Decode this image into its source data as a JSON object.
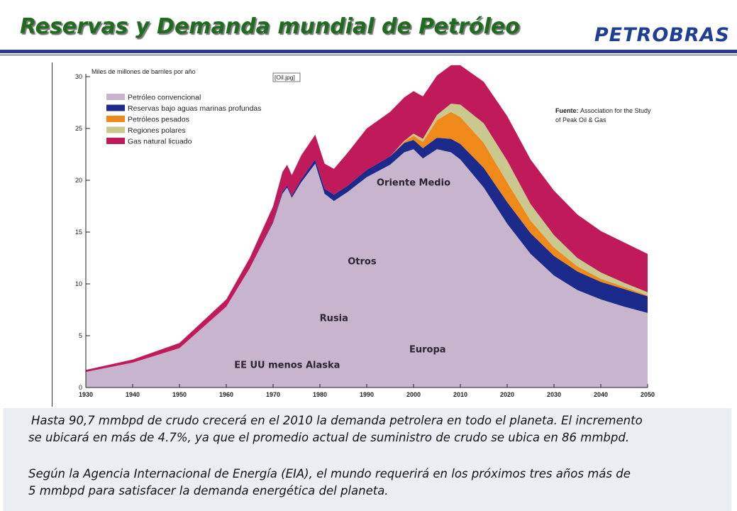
{
  "slide": {
    "title": "Reservas y Demanda mundial de Petróleo",
    "logo_text": "PETROBRAS",
    "paragraph1_line1": "Hasta 90,7 mmbpd de crudo crecerá en el 2010 la demanda petrolera en todo el planeta. El incremento",
    "paragraph1_line2": "se ubicará en más de 4.7%, ya que el promedio actual de suministro de crudo se ubica en 86 mmbpd.",
    "paragraph2_line1": "Según la Agencia Internacional de Energía (EIA), el mundo requerirá en los próximos tres años más de",
    "paragraph2_line2": "5 mmbpd para satisfacer la demanda energética del planeta."
  },
  "colors": {
    "title": "#1f6b1f",
    "logo": "#1f3f95",
    "rule": "#2a3d8f",
    "conventional": "#c7b5cd",
    "deepwater": "#1c2a8c",
    "heavy": "#ef8a1a",
    "polar": "#c9c88f",
    "lng": "#c01a5a",
    "note_background": "#eaeef2"
  },
  "chart_data": {
    "type": "area",
    "stacked": true,
    "ylabel": "Miles de millones de barriles por año",
    "image_tag": "[Oil.jpg]",
    "ylim": [
      0,
      30
    ],
    "xlim": [
      1930,
      2050
    ],
    "x_ticks": [
      "1930",
      "1940",
      "1950",
      "1960",
      "1970",
      "1980",
      "1990",
      "2000",
      "2010",
      "2020",
      "2030",
      "2040",
      "2050"
    ],
    "y_ticks": [
      "0",
      "5",
      "10",
      "15",
      "20",
      "25",
      "30"
    ],
    "source_label": "Fuente:",
    "source_text_line1": "Association for the Study",
    "source_text_line2": "of Peak Oil & Gas",
    "legend_position": "top-left",
    "x": [
      1930,
      1940,
      1950,
      1960,
      1965,
      1970,
      1972,
      1973,
      1974,
      1976,
      1979,
      1981,
      1983,
      1986,
      1990,
      1995,
      1998,
      2000,
      2002,
      2005,
      2008,
      2010,
      2015,
      2020,
      2025,
      2030,
      2035,
      2040,
      2045,
      2050
    ],
    "series": [
      {
        "name": "Petróleo convencional",
        "color": "#c7b5cd",
        "values": [
          1.5,
          2.4,
          3.8,
          7.8,
          11.5,
          15.9,
          18.7,
          19.3,
          18.3,
          19.8,
          21.6,
          18.7,
          18.0,
          18.9,
          20.3,
          21.5,
          22.7,
          23.0,
          22.1,
          23.0,
          22.7,
          22.0,
          19.3,
          15.8,
          12.9,
          10.8,
          9.4,
          8.5,
          7.8,
          7.2
        ]
      },
      {
        "name": "Reservas bajo aguas marinas profundas",
        "color": "#1c2a8c",
        "values": [
          0,
          0,
          0,
          0,
          0,
          0.1,
          0.2,
          0.2,
          0.2,
          0.3,
          0.4,
          0.5,
          0.6,
          0.6,
          0.7,
          0.8,
          0.9,
          0.9,
          1.0,
          1.1,
          1.3,
          1.5,
          1.9,
          2.1,
          2.0,
          1.9,
          1.8,
          1.7,
          1.7,
          1.6
        ]
      },
      {
        "name": "Petróleos pesados",
        "color": "#ef8a1a",
        "values": [
          0,
          0,
          0,
          0,
          0,
          0,
          0,
          0,
          0,
          0,
          0,
          0,
          0,
          0,
          0,
          0,
          0.1,
          0.4,
          0.6,
          1.7,
          2.6,
          2.6,
          2.4,
          1.9,
          1.2,
          0.8,
          0.5,
          0.3,
          0.2,
          0.1
        ]
      },
      {
        "name": "Regiones polares",
        "color": "#c9c88f",
        "values": [
          0,
          0,
          0,
          0,
          0,
          0,
          0,
          0,
          0,
          0,
          0,
          0,
          0,
          0,
          0,
          0,
          0.1,
          0.2,
          0.3,
          0.5,
          0.8,
          1.2,
          1.9,
          2.1,
          1.6,
          1.2,
          0.8,
          0.6,
          0.4,
          0.3
        ]
      },
      {
        "name": "Gas natural licuado",
        "color": "#c01a5a",
        "values": [
          0.2,
          0.3,
          0.5,
          0.7,
          1.0,
          1.5,
          1.9,
          2.0,
          2.0,
          2.3,
          2.4,
          2.4,
          2.5,
          3.2,
          4.0,
          4.3,
          4.2,
          4.1,
          4.1,
          3.8,
          3.7,
          3.8,
          4.0,
          4.3,
          4.3,
          4.3,
          4.2,
          4.0,
          3.9,
          3.7
        ]
      }
    ],
    "regions": [
      {
        "label": "Oriente Medio",
        "x": 2000,
        "y": 19.5
      },
      {
        "label": "Otros",
        "x": 1989,
        "y": 11.9
      },
      {
        "label": "Rusia",
        "x": 1983,
        "y": 6.4
      },
      {
        "label": "Europa",
        "x": 2003,
        "y": 3.4
      },
      {
        "label": "EE UU menos Alaska",
        "x": 1973,
        "y": 1.9
      }
    ]
  }
}
